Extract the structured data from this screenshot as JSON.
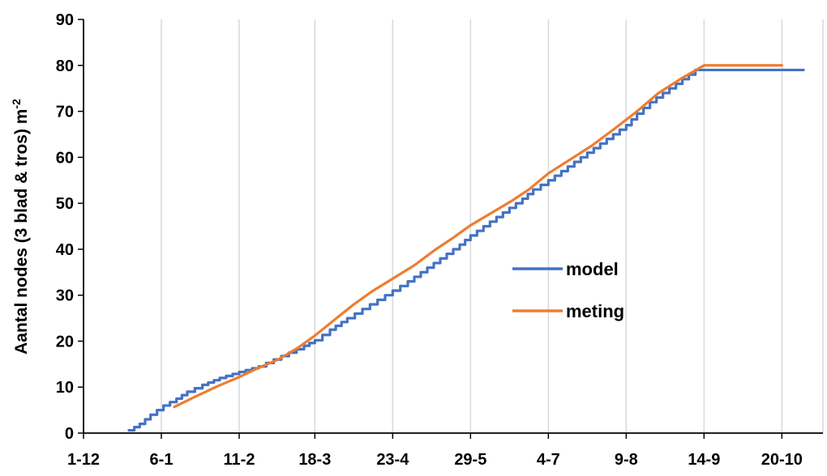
{
  "chart_data": {
    "type": "line",
    "ylabel": "Aantal nodes (3 blad & tros) m",
    "ylabel_superscript": "-2",
    "x_tick_labels": [
      "1-12",
      "6-1",
      "11-2",
      "18-3",
      "23-4",
      "29-5",
      "4-7",
      "9-8",
      "14-9",
      "20-10"
    ],
    "xlim": [
      "1-12",
      "8-11"
    ],
    "ylim": [
      0,
      90
    ],
    "y_ticks": [
      0,
      10,
      20,
      30,
      40,
      50,
      60,
      70,
      80,
      90
    ],
    "grid": "vertical",
    "legend_position": "center-right",
    "x_unit": "day (d-m)",
    "series": [
      {
        "name": "model",
        "color": "#4472C4",
        "style": "step",
        "points": [
          [
            "22-12",
            0.6
          ],
          [
            "27-12",
            2
          ],
          [
            "1-1",
            4
          ],
          [
            "7-1",
            6
          ],
          [
            "13-1",
            7.5
          ],
          [
            "18-1",
            9
          ],
          [
            "25-1",
            10.5
          ],
          [
            "2-2",
            12
          ],
          [
            "11-2",
            13.3
          ],
          [
            "20-2",
            14.5
          ],
          [
            "27-2",
            16
          ],
          [
            "6-3",
            17.5
          ],
          [
            "13-3",
            19
          ],
          [
            "18-3",
            20.2
          ],
          [
            "25-3",
            22.5
          ],
          [
            "2-4",
            25
          ],
          [
            "9-4",
            27
          ],
          [
            "16-4",
            29
          ],
          [
            "23-4",
            31
          ],
          [
            "30-4",
            33
          ],
          [
            "6-5",
            35
          ],
          [
            "12-5",
            37
          ],
          [
            "18-5",
            39
          ],
          [
            "24-5",
            41
          ],
          [
            "29-5",
            43
          ],
          [
            "4-6",
            45
          ],
          [
            "10-6",
            47
          ],
          [
            "16-6",
            49
          ],
          [
            "22-6",
            51
          ],
          [
            "27-6",
            53
          ],
          [
            "4-7",
            55
          ],
          [
            "10-7",
            57
          ],
          [
            "16-7",
            59
          ],
          [
            "22-7",
            61
          ],
          [
            "28-7",
            63
          ],
          [
            "3-8",
            65
          ],
          [
            "9-8",
            67
          ],
          [
            "14-8",
            69.5
          ],
          [
            "20-8",
            72
          ],
          [
            "26-8",
            74
          ],
          [
            "1-9",
            76
          ],
          [
            "7-9",
            78
          ],
          [
            "10-9",
            79
          ],
          [
            "14-9",
            79
          ],
          [
            "30-9",
            79
          ],
          [
            "15-10",
            79
          ],
          [
            "30-10",
            79
          ]
        ]
      },
      {
        "name": "meting",
        "color": "#ED7D31",
        "style": "smooth",
        "points": [
          [
            "12-1",
            5.7
          ],
          [
            "22-1",
            8
          ],
          [
            "1-2",
            10.2
          ],
          [
            "11-2",
            12.2
          ],
          [
            "20-2",
            14.2
          ],
          [
            "1-3",
            16
          ],
          [
            "10-3",
            18.5
          ],
          [
            "18-3",
            21.2
          ],
          [
            "28-3",
            25
          ],
          [
            "5-4",
            28
          ],
          [
            "14-4",
            31
          ],
          [
            "23-4",
            33.6
          ],
          [
            "3-5",
            36.5
          ],
          [
            "13-5",
            40
          ],
          [
            "21-5",
            42.5
          ],
          [
            "29-5",
            45.2
          ],
          [
            "8-6",
            48
          ],
          [
            "17-6",
            50.5
          ],
          [
            "25-6",
            53
          ],
          [
            "4-7",
            56.5
          ],
          [
            "14-7",
            59.5
          ],
          [
            "24-7",
            62.5
          ],
          [
            "3-8",
            66
          ],
          [
            "14-8",
            70
          ],
          [
            "24-8",
            74
          ],
          [
            "3-9",
            77
          ],
          [
            "14-9",
            80
          ],
          [
            "30-9",
            80
          ],
          [
            "20-10",
            80
          ]
        ]
      }
    ]
  }
}
